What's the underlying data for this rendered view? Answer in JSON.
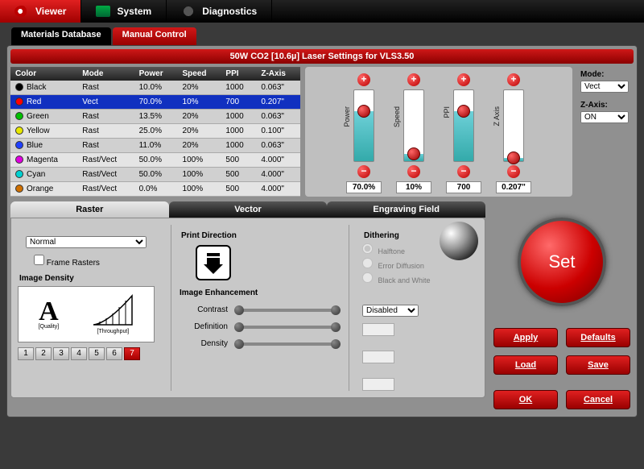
{
  "topTabs": [
    {
      "label": "Viewer",
      "active": true,
      "icon": "eye"
    },
    {
      "label": "System",
      "active": false,
      "icon": "sys"
    },
    {
      "label": "Diagnostics",
      "active": false,
      "icon": "diag"
    }
  ],
  "subTabs": [
    {
      "label": "Materials Database",
      "active": false
    },
    {
      "label": "Manual Control",
      "active": true
    }
  ],
  "panelTitle": "50W CO2 [10.6µ] Laser Settings for VLS3.50",
  "colorTable": {
    "headers": [
      "Color",
      "Mode",
      "Power",
      "Speed",
      "PPI",
      "Z-Axis"
    ],
    "rows": [
      {
        "name": "Black",
        "hex": "#000000",
        "mode": "Rast",
        "power": "10.0%",
        "speed": "20%",
        "ppi": "1000",
        "z": "0.063\"",
        "sel": false,
        "alt": false
      },
      {
        "name": "Red",
        "hex": "#ff0000",
        "mode": "Vect",
        "power": "70.0%",
        "speed": "10%",
        "ppi": "700",
        "z": "0.207\"",
        "sel": true,
        "alt": false
      },
      {
        "name": "Green",
        "hex": "#00c000",
        "mode": "Rast",
        "power": "13.5%",
        "speed": "20%",
        "ppi": "1000",
        "z": "0.063\"",
        "sel": false,
        "alt": false
      },
      {
        "name": "Yellow",
        "hex": "#e8e800",
        "mode": "Rast",
        "power": "25.0%",
        "speed": "20%",
        "ppi": "1000",
        "z": "0.100\"",
        "sel": false,
        "alt": true
      },
      {
        "name": "Blue",
        "hex": "#2040ff",
        "mode": "Rast",
        "power": "11.0%",
        "speed": "20%",
        "ppi": "1000",
        "z": "0.063\"",
        "sel": false,
        "alt": false
      },
      {
        "name": "Magenta",
        "hex": "#e000e0",
        "mode": "Rast/Vect",
        "power": "50.0%",
        "speed": "100%",
        "ppi": "500",
        "z": "4.000\"",
        "sel": false,
        "alt": true
      },
      {
        "name": "Cyan",
        "hex": "#00d0d0",
        "mode": "Rast/Vect",
        "power": "50.0%",
        "speed": "100%",
        "ppi": "500",
        "z": "4.000\"",
        "sel": false,
        "alt": false
      },
      {
        "name": "Orange",
        "hex": "#d07000",
        "mode": "Rast/Vect",
        "power": "0.0%",
        "speed": "100%",
        "ppi": "500",
        "z": "4.000\"",
        "sel": false,
        "alt": true
      }
    ]
  },
  "sliders": [
    {
      "label": "Power",
      "value": "70.0%",
      "fill": 70
    },
    {
      "label": "Speed",
      "value": "10%",
      "fill": 10
    },
    {
      "label": "PPI",
      "value": "700",
      "fill": 70
    },
    {
      "label": "Z Axis",
      "value": "0.207\"",
      "fill": 5
    }
  ],
  "modeLabel": "Mode:",
  "modeValue": "Vect",
  "zAxisLabel": "Z-Axis:",
  "zAxisValue": "ON",
  "tabs2": [
    {
      "label": "Raster",
      "active": true
    },
    {
      "label": "Vector",
      "active": false
    },
    {
      "label": "Engraving Field",
      "active": false
    }
  ],
  "raster": {
    "mode": "Normal",
    "frameRasters": "Frame Rasters",
    "imageDensityTitle": "Image Density",
    "qualityLabel": "[Quality]",
    "throughputLabel": "[Throughput]",
    "densitySelected": 7,
    "densityLabels": [
      "1",
      "2",
      "3",
      "4",
      "5",
      "6",
      "7"
    ]
  },
  "printDirectionTitle": "Print Direction",
  "ditheringTitle": "Dithering",
  "dithering": {
    "options": [
      "Halftone",
      "Error Diffusion",
      "Black and White"
    ],
    "selected": 0
  },
  "enhancement": {
    "title": "Image Enhancement",
    "state": "Disabled",
    "sliders": [
      "Contrast",
      "Definition",
      "Density"
    ]
  },
  "setLabel": "Set",
  "buttons": {
    "apply": "Apply",
    "defaults": "Defaults",
    "load": "Load",
    "save": "Save",
    "ok": "OK",
    "cancel": "Cancel"
  },
  "colors": {
    "accent": "#c01010",
    "panel": "#909090",
    "tabDark": "#111111"
  }
}
